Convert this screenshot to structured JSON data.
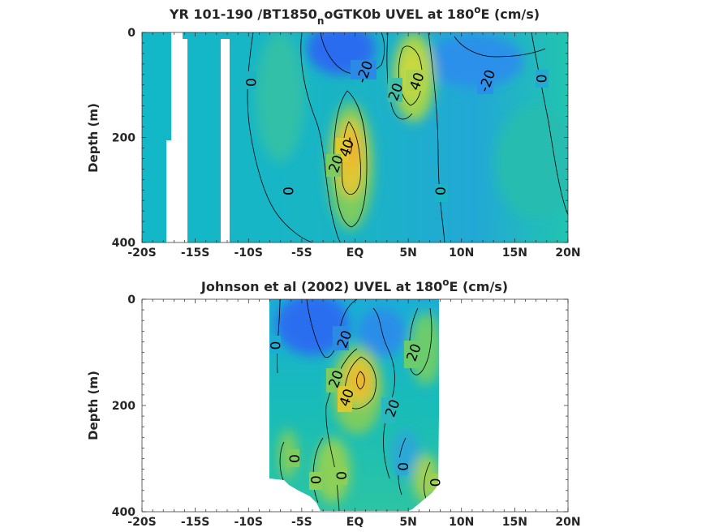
{
  "chart_data": [
    {
      "type": "heatmap",
      "title_main": "YR 101-190 /BT1850",
      "title_sub": "n",
      "title_rest": "oGTK0b UVEL at 180",
      "title_sup": "o",
      "title_end": "E (cm/s)",
      "ylabel": "Depth (m)",
      "xlim": [
        -20,
        20
      ],
      "ylim": [
        0,
        400
      ],
      "y_reversed": true,
      "xticks": [
        -20,
        -15,
        -10,
        -5,
        0,
        5,
        10,
        15,
        20
      ],
      "xtick_labels": [
        "-20S",
        "-15S",
        "-10S",
        "-5S",
        "EQ",
        "5N",
        "10N",
        "15N",
        "20N"
      ],
      "yticks": [
        0,
        200,
        400
      ],
      "ytick_labels": [
        "0",
        "200",
        "400"
      ],
      "contour_labels": [
        {
          "text": "0",
          "x": -9.8,
          "y": 95
        },
        {
          "text": "0",
          "x": -6.3,
          "y": 302
        },
        {
          "text": "-20",
          "x": 0.9,
          "y": 75
        },
        {
          "text": "20",
          "x": 3.8,
          "y": 113
        },
        {
          "text": "40",
          "x": 5.8,
          "y": 93
        },
        {
          "text": "-20",
          "x": 12.4,
          "y": 92
        },
        {
          "text": "0",
          "x": 17.5,
          "y": 88
        },
        {
          "text": "40",
          "x": -0.8,
          "y": 220
        },
        {
          "text": "20",
          "x": -1.8,
          "y": 250
        },
        {
          "text": "0",
          "x": 8.0,
          "y": 302
        }
      ]
    },
    {
      "type": "heatmap",
      "title_main": "Johnson et al (2002) UVEL at 180",
      "title_sup": "o",
      "title_end": "E (cm/s)",
      "ylabel": "Depth (m)",
      "xlim": [
        -20,
        20
      ],
      "ylim": [
        0,
        400
      ],
      "y_reversed": true,
      "data_extent_x": [
        -8,
        8
      ],
      "xticks": [
        -20,
        -15,
        -10,
        -5,
        0,
        5,
        10,
        15,
        20
      ],
      "xtick_labels": [
        "-20S",
        "-15S",
        "-10S",
        "-5S",
        "EQ",
        "5N",
        "10N",
        "15N",
        "20N"
      ],
      "yticks": [
        0,
        200,
        400
      ],
      "ytick_labels": [
        "0",
        "200",
        "400"
      ],
      "contour_labels": [
        {
          "text": "0",
          "x": -7.5,
          "y": 87
        },
        {
          "text": "20",
          "x": -1.0,
          "y": 75
        },
        {
          "text": "20",
          "x": 5.5,
          "y": 100
        },
        {
          "text": "20",
          "x": -1.8,
          "y": 150
        },
        {
          "text": "40",
          "x": -0.8,
          "y": 185
        },
        {
          "text": "20",
          "x": 3.5,
          "y": 205
        },
        {
          "text": "0",
          "x": -5.7,
          "y": 300
        },
        {
          "text": "0",
          "x": -3.7,
          "y": 340
        },
        {
          "text": "0",
          "x": -1.3,
          "y": 332
        },
        {
          "text": "0",
          "x": 4.5,
          "y": 315
        },
        {
          "text": "0",
          "x": 7.5,
          "y": 345
        }
      ]
    }
  ]
}
